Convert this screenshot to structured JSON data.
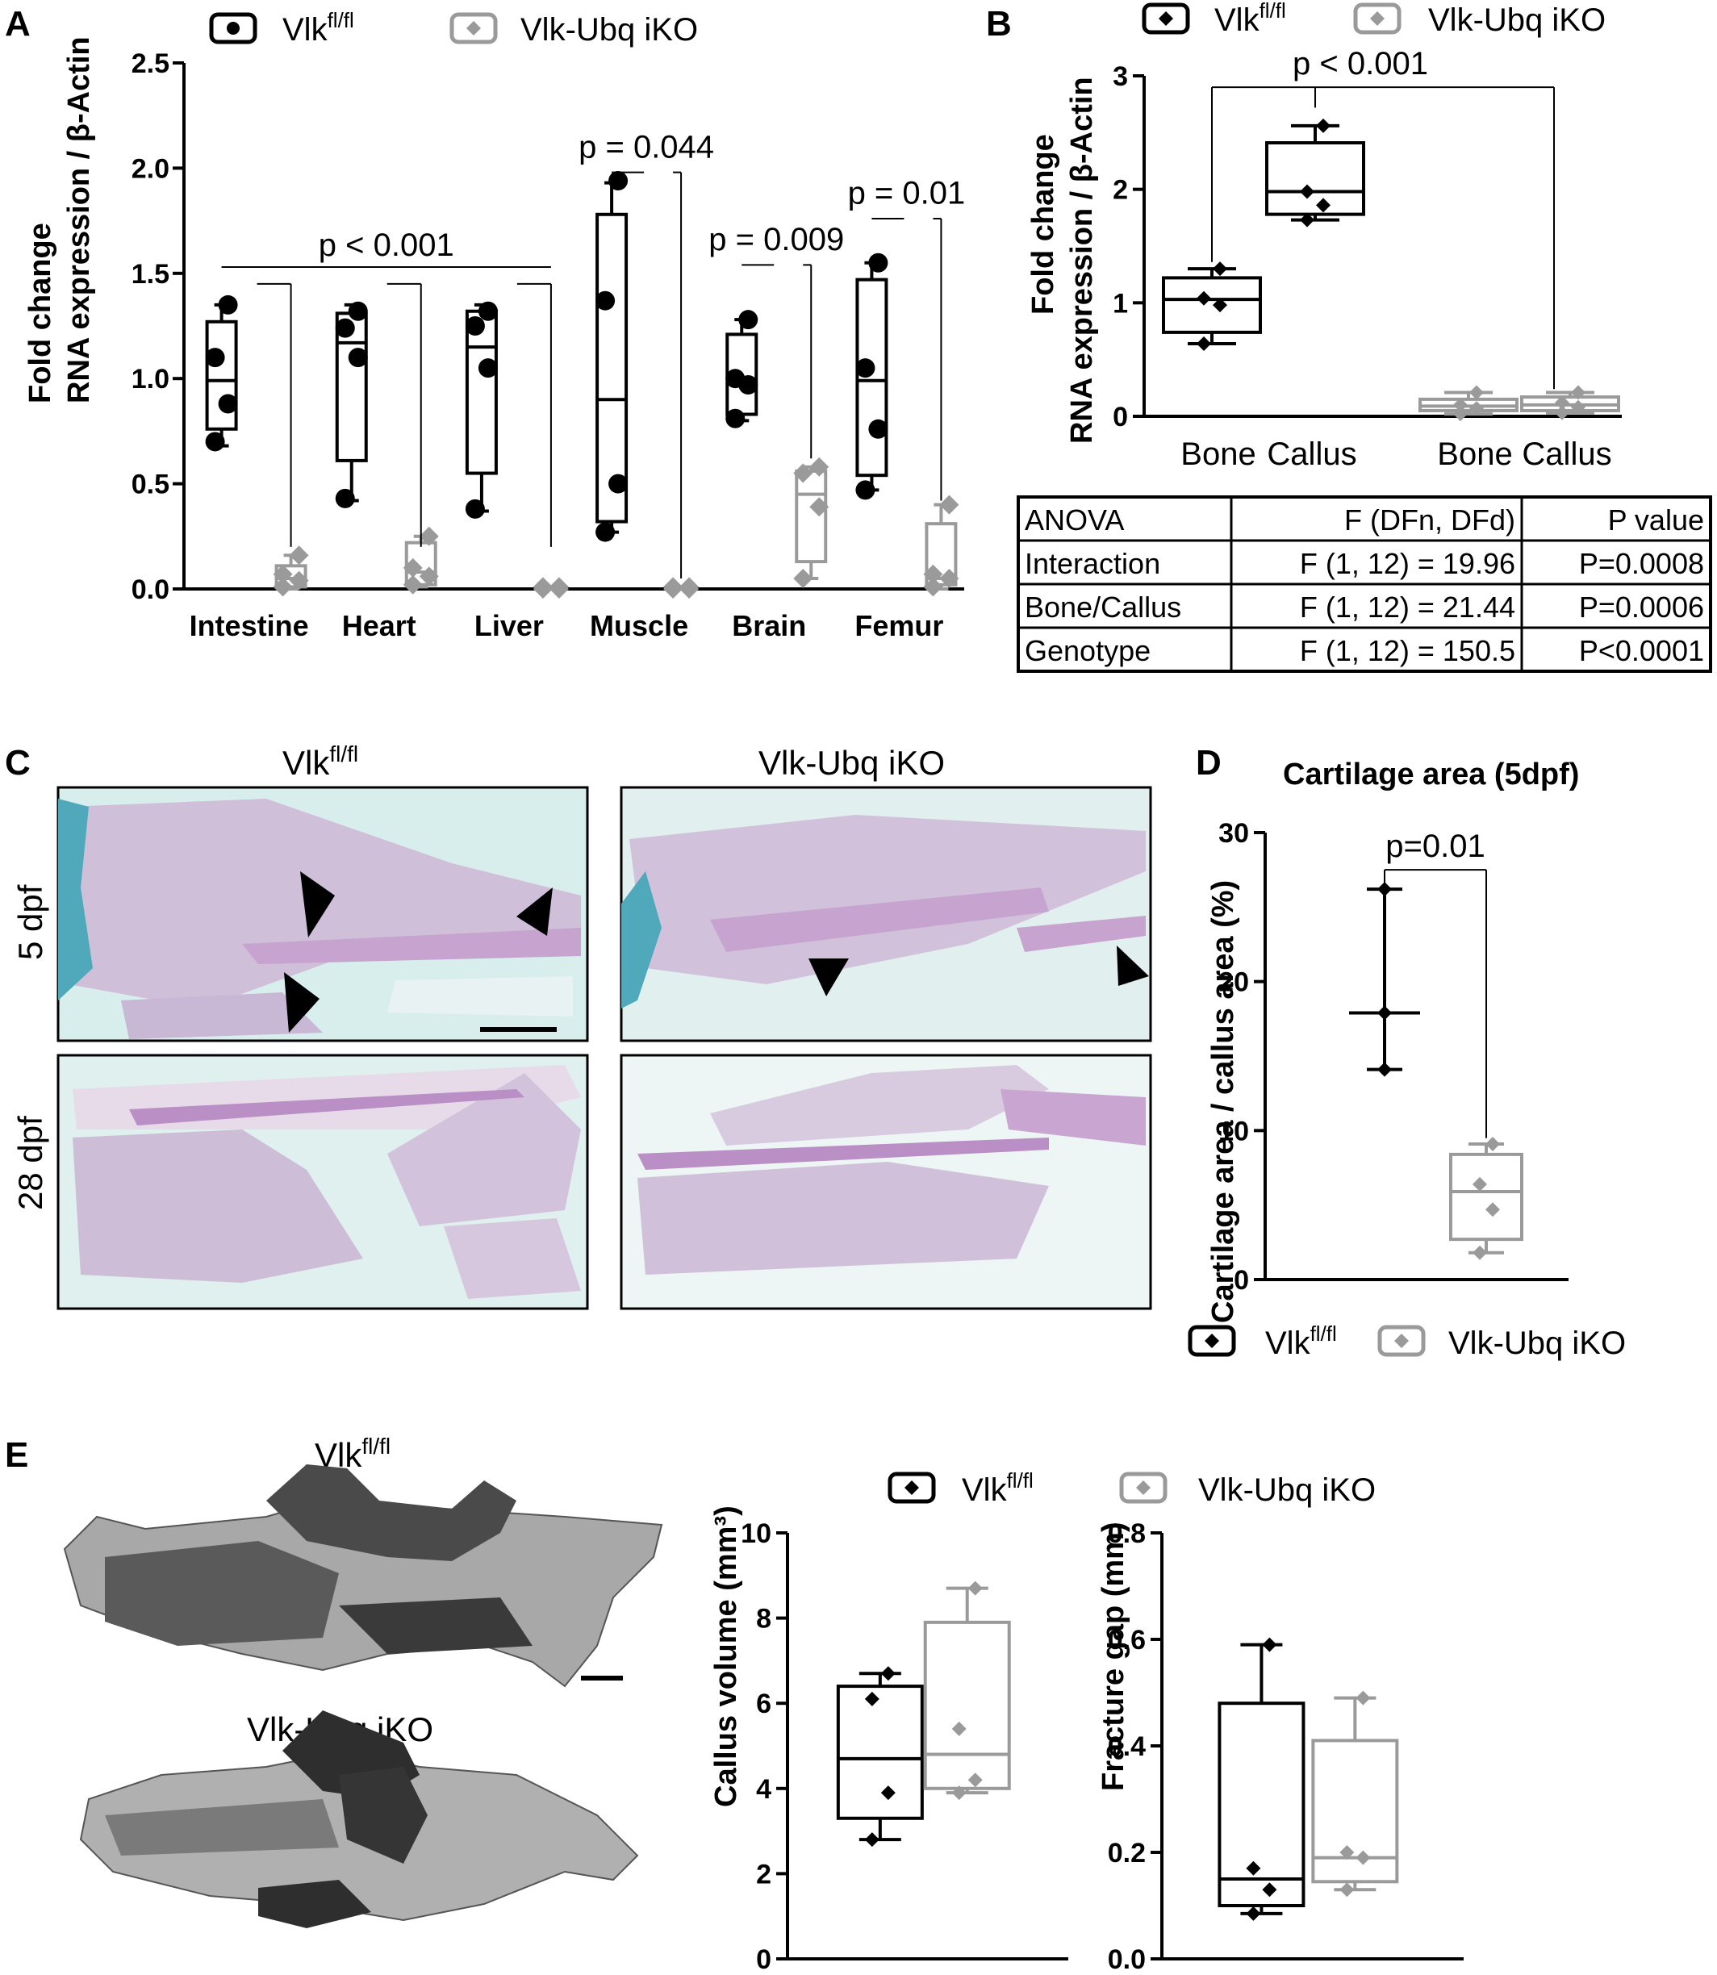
{
  "panels": {
    "A": "A",
    "B": "B",
    "C": "C",
    "D": "D",
    "E": "E"
  },
  "legend": {
    "wt": "Vlk",
    "wt_sup": "fl/fl",
    "ko": "Vlk-Ubq iKO"
  },
  "colors": {
    "wt": "#000000",
    "ko": "#9a9a9a"
  },
  "chart_data": [
    {
      "id": "A",
      "type": "box",
      "ylabel_line1": "Fold change",
      "ylabel_line2": "RNA expression / β-Actin",
      "ylim": [
        0,
        2.5
      ],
      "yticks": [
        "0.0",
        "0.5",
        "1.0",
        "1.5",
        "2.0",
        "2.5"
      ],
      "categories": [
        "Intestine",
        "Heart",
        "Liver",
        "Muscle",
        "Brain",
        "Femur"
      ],
      "series": [
        {
          "name": "Vlk fl/fl",
          "marker": "circle",
          "boxes": [
            {
              "min": 0.68,
              "q1": 0.76,
              "median": 0.99,
              "q3": 1.27,
              "max": 1.35
            },
            {
              "min": 0.42,
              "q1": 0.61,
              "median": 1.17,
              "q3": 1.31,
              "max": 1.35
            },
            {
              "min": 0.37,
              "q1": 0.55,
              "median": 1.15,
              "q3": 1.32,
              "max": 1.35
            },
            {
              "min": 0.27,
              "q1": 0.32,
              "median": 0.9,
              "q3": 1.78,
              "max": 1.93
            },
            {
              "min": 0.8,
              "q1": 0.83,
              "median": 0.99,
              "q3": 1.21,
              "max": 1.28
            },
            {
              "min": 0.47,
              "q1": 0.54,
              "median": 0.99,
              "q3": 1.47,
              "max": 1.55
            }
          ],
          "points": [
            [
              0.7,
              0.88,
              1.1,
              1.35
            ],
            [
              0.43,
              1.1,
              1.24,
              1.32
            ],
            [
              0.38,
              1.05,
              1.25,
              1.32
            ],
            [
              0.27,
              0.5,
              1.37,
              1.94
            ],
            [
              0.81,
              0.97,
              1.0,
              1.28
            ],
            [
              0.47,
              0.76,
              1.05,
              1.55
            ]
          ]
        },
        {
          "name": "Vlk-Ubq iKO",
          "marker": "diamond",
          "boxes": [
            {
              "min": 0.0,
              "q1": 0.01,
              "median": 0.05,
              "q3": 0.11,
              "max": 0.16
            },
            {
              "min": 0.01,
              "q1": 0.02,
              "median": 0.08,
              "q3": 0.22,
              "max": 0.25
            },
            {
              "min": 0.0,
              "q1": 0.0,
              "median": 0.0,
              "q3": 0.01,
              "max": 0.01
            },
            {
              "min": 0.0,
              "q1": 0.0,
              "median": 0.0,
              "q3": 0.01,
              "max": 0.01
            },
            {
              "min": 0.05,
              "q1": 0.13,
              "median": 0.45,
              "q3": 0.56,
              "max": 0.58
            },
            {
              "min": 0.0,
              "q1": 0.02,
              "median": 0.05,
              "q3": 0.31,
              "max": 0.4
            }
          ],
          "points": [
            [
              0.01,
              0.04,
              0.07,
              0.16
            ],
            [
              0.02,
              0.06,
              0.1,
              0.25
            ],
            [
              0.0,
              0.0,
              0.01,
              0.01
            ],
            [
              0.0,
              0.0,
              0.01,
              0.01
            ],
            [
              0.05,
              0.39,
              0.55,
              0.58
            ],
            [
              0.01,
              0.05,
              0.07,
              0.4
            ]
          ]
        }
      ],
      "annotations": [
        {
          "text": "p < 0.001",
          "from": 0,
          "to": 2
        },
        {
          "text": "p = 0.044",
          "category": 3
        },
        {
          "text": "p = 0.009",
          "category": 4
        },
        {
          "text": "p = 0.01",
          "category": 5
        }
      ]
    },
    {
      "id": "B",
      "type": "box",
      "ylabel_line1": "Fold change",
      "ylabel_line2": "RNA expression / β-Actin",
      "ylim": [
        0,
        3
      ],
      "yticks": [
        "0",
        "1",
        "2",
        "3"
      ],
      "categories": [
        "Bone",
        "Callus",
        "Bone",
        "Callus"
      ],
      "series": [
        {
          "name": "Vlk fl/fl",
          "marker": "diamond",
          "boxes": [
            {
              "min": 0.64,
              "q1": 0.74,
              "median": 1.03,
              "q3": 1.22,
              "max": 1.3
            },
            {
              "min": 1.73,
              "q1": 1.78,
              "median": 1.98,
              "q3": 2.41,
              "max": 2.56
            }
          ]
        },
        {
          "name": "Vlk-Ubq iKO",
          "marker": "diamond",
          "boxes": [
            {
              "min": 0.02,
              "q1": 0.05,
              "median": 0.09,
              "q3": 0.15,
              "max": 0.21
            },
            {
              "min": 0.03,
              "q1": 0.05,
              "median": 0.1,
              "q3": 0.17,
              "max": 0.21
            }
          ]
        }
      ],
      "annotation": "p < 0.001"
    },
    {
      "id": "D",
      "type": "box",
      "title": "Cartilage area (5dpf)",
      "ylabel": "Cartilage area / callus area (%)",
      "ylim": [
        0,
        30
      ],
      "yticks": [
        "0",
        "10",
        "20",
        "30"
      ],
      "series": [
        {
          "name": "Vlk fl/fl",
          "box": {
            "min": 14.1,
            "median": 17.9,
            "max": 26.2
          }
        },
        {
          "name": "Vlk-Ubq iKO",
          "box": {
            "min": 1.8,
            "q1": 2.7,
            "median": 5.9,
            "q3": 8.4,
            "max": 9.1
          }
        }
      ],
      "annotation": "p=0.01"
    },
    {
      "id": "E1",
      "type": "box",
      "ylabel": "Callus volume (mm³)",
      "ylim": [
        0,
        10
      ],
      "yticks": [
        "0",
        "2",
        "4",
        "6",
        "8",
        "10"
      ],
      "series": [
        {
          "name": "Vlk fl/fl",
          "box": {
            "min": 2.8,
            "q1": 3.3,
            "median": 4.7,
            "q3": 6.4,
            "max": 6.7
          }
        },
        {
          "name": "Vlk-Ubq iKO",
          "box": {
            "min": 3.9,
            "q1": 4.0,
            "median": 4.8,
            "q3": 7.9,
            "max": 8.7
          }
        }
      ]
    },
    {
      "id": "E2",
      "type": "box",
      "ylabel": "Fracture gap (mm)",
      "ylim": [
        0,
        0.8
      ],
      "yticks": [
        "0.0",
        "0.2",
        "0.4",
        "0.6",
        "0.8"
      ],
      "series": [
        {
          "name": "Vlk fl/fl",
          "box": {
            "min": 0.085,
            "q1": 0.1,
            "median": 0.15,
            "q3": 0.48,
            "max": 0.59
          }
        },
        {
          "name": "Vlk-Ubq iKO",
          "box": {
            "min": 0.13,
            "q1": 0.145,
            "median": 0.19,
            "q3": 0.41,
            "max": 0.49
          }
        }
      ]
    }
  ],
  "anova": {
    "header": [
      "ANOVA",
      "F (DFn, DFd)",
      "P value"
    ],
    "rows": [
      [
        "Interaction",
        "F (1, 12) = 19.96",
        "P=0.0008"
      ],
      [
        "Bone/Callus",
        "F (1, 12) = 21.44",
        "P=0.0006"
      ],
      [
        "Genotype",
        "F (1, 12) = 150.5",
        "P<0.0001"
      ]
    ]
  },
  "histology": {
    "col_wt": "Vlk",
    "col_wt_sup": "fl/fl",
    "col_ko": "Vlk-Ubq iKO",
    "row1": "5 dpf",
    "row2": "28 dpf"
  },
  "microct": {
    "wt": "Vlk",
    "wt_sup": "fl/fl",
    "ko": "Vlk-Ubq iKO"
  }
}
